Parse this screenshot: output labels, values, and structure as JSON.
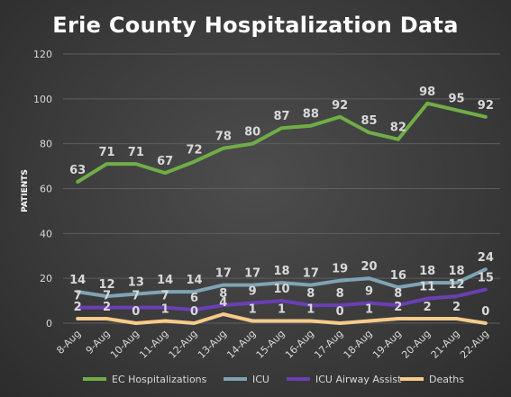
{
  "chart_data": {
    "type": "line",
    "title": "Erie County Hospitalization Data",
    "xlabel": "",
    "ylabel": "PATIENTS",
    "ylim": [
      0,
      120
    ],
    "yticks": [
      0,
      20,
      40,
      60,
      80,
      100,
      120
    ],
    "grid": true,
    "legend_position": "bottom",
    "categories": [
      "8-Aug",
      "9-Aug",
      "10-Aug",
      "11-Aug",
      "12-Aug",
      "13-Aug",
      "14-Aug",
      "15-Aug",
      "16-Aug",
      "17-Aug",
      "18-Aug",
      "19-Aug",
      "20-Aug",
      "21-Aug",
      "22-Aug"
    ],
    "series": [
      {
        "name": "EC Hospitalizations",
        "color": "#70ad47",
        "values": [
          63,
          71,
          71,
          67,
          72,
          78,
          80,
          87,
          88,
          92,
          85,
          82,
          98,
          95,
          92
        ]
      },
      {
        "name": "ICU",
        "color": "#7fa3b5",
        "values": [
          14,
          12,
          13,
          14,
          14,
          17,
          17,
          18,
          17,
          19,
          20,
          16,
          18,
          18,
          24
        ]
      },
      {
        "name": "ICU Airway Assist",
        "color": "#6a3fb4",
        "values": [
          7,
          7,
          7,
          7,
          6,
          8,
          9,
          10,
          8,
          8,
          9,
          8,
          11,
          12,
          15
        ]
      },
      {
        "name": "Deaths",
        "color": "#f7cb8a",
        "values": [
          2,
          2,
          0,
          1,
          0,
          4,
          1,
          1,
          1,
          0,
          1,
          2,
          2,
          2,
          0
        ]
      }
    ]
  }
}
